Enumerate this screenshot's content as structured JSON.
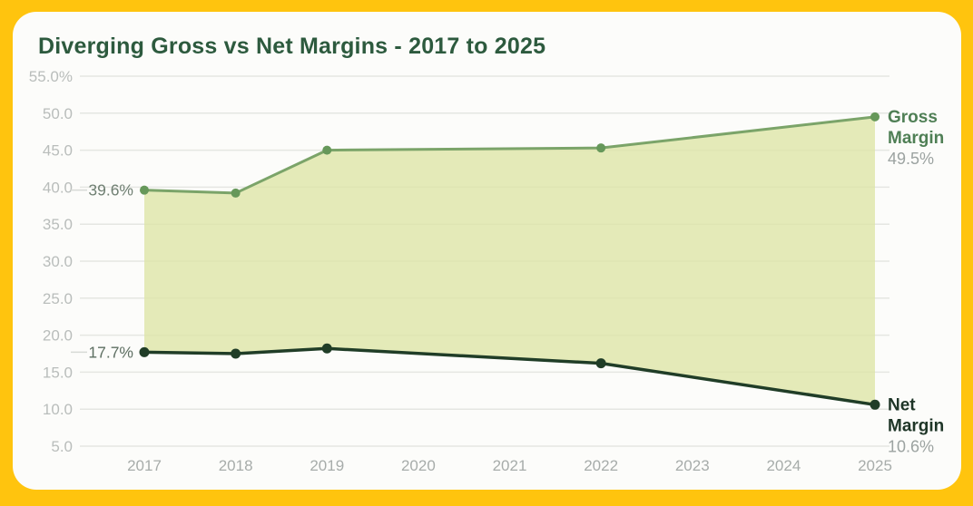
{
  "title": "Diverging Gross vs Net Margins - 2017 to 2025",
  "theme": {
    "frame_color": "#FFC40E",
    "card_color": "#FCFCFA",
    "title_color": "#2D5A3E",
    "grid_color": "#E5E6E2",
    "y_tick_color": "#B9BDBB",
    "x_tick_color": "#A7ACAA",
    "value_label_color": "#9CA3A1",
    "annotation_dash_color": "#D7DAD6",
    "fill_color": "#DDE5A8",
    "fill_opacity": 0.8
  },
  "chart_data": {
    "type": "area",
    "title": "Diverging Gross vs Net Margins - 2017 to 2025",
    "x_ticks": [
      "2017",
      "2018",
      "2019",
      "2020",
      "2021",
      "2022",
      "2023",
      "2024",
      "2025"
    ],
    "x_range": [
      2017,
      2025
    ],
    "y_range": [
      5,
      55
    ],
    "y_ticks": [
      {
        "value": 55,
        "label": "55.0%"
      },
      {
        "value": 50,
        "label": "50.0"
      },
      {
        "value": 45,
        "label": "45.0"
      },
      {
        "value": 40,
        "label": "40.0"
      },
      {
        "value": 35,
        "label": "35.0"
      },
      {
        "value": 30,
        "label": "30.0"
      },
      {
        "value": 25,
        "label": "25.0"
      },
      {
        "value": 20,
        "label": "20.0"
      },
      {
        "value": 15,
        "label": "15.0"
      },
      {
        "value": 10,
        "label": "10.0"
      },
      {
        "value": 5,
        "label": "5.0"
      }
    ],
    "grid": true,
    "legend_position": "right-edge-labels",
    "series": [
      {
        "name": "Gross Margin",
        "line_color": "#7BA469",
        "marker_color": "#66985A",
        "label_color": "#4F7F55",
        "label_lines": [
          "Gross",
          "Margin"
        ],
        "start_label": "39.6%",
        "start_label_color": "#6F7F72",
        "end_label": "49.5%",
        "points": [
          {
            "x": 2017,
            "y": 39.6
          },
          {
            "x": 2018,
            "y": 39.2
          },
          {
            "x": 2019,
            "y": 45.0
          },
          {
            "x": 2022,
            "y": 45.3
          },
          {
            "x": 2025,
            "y": 49.5
          }
        ]
      },
      {
        "name": "Net Margin",
        "line_color": "#203D27",
        "marker_color": "#203D27",
        "label_color": "#1E3527",
        "label_lines": [
          "Net",
          "Margin"
        ],
        "start_label": "17.7%",
        "start_label_color": "#5E6F62",
        "end_label": "10.6%",
        "points": [
          {
            "x": 2017,
            "y": 17.7
          },
          {
            "x": 2018,
            "y": 17.5
          },
          {
            "x": 2019,
            "y": 18.2
          },
          {
            "x": 2022,
            "y": 16.2
          },
          {
            "x": 2025,
            "y": 10.6
          }
        ]
      }
    ],
    "fill_between": [
      "Gross Margin",
      "Net Margin"
    ]
  }
}
